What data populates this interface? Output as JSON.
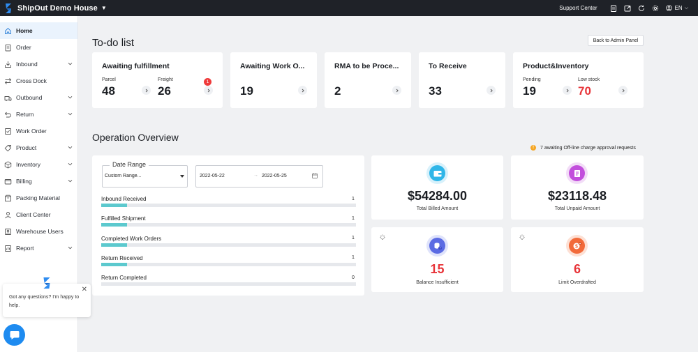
{
  "topbar": {
    "brand_name": "ShipOut Demo House",
    "support_label": "Support Center",
    "lang": "EN",
    "icons": [
      "clipboard-icon",
      "export-icon",
      "refresh-icon",
      "settings-icon",
      "user-icon"
    ]
  },
  "sidebar": {
    "items": [
      {
        "label": "Home",
        "icon": "home-icon",
        "active": true,
        "expandable": false
      },
      {
        "label": "Order",
        "icon": "order-icon",
        "active": false,
        "expandable": false
      },
      {
        "label": "Inbound",
        "icon": "inbound-icon",
        "active": false,
        "expandable": true
      },
      {
        "label": "Cross Dock",
        "icon": "cross-dock-icon",
        "active": false,
        "expandable": false
      },
      {
        "label": "Outbound",
        "icon": "outbound-icon",
        "active": false,
        "expandable": true
      },
      {
        "label": "Return",
        "icon": "return-icon",
        "active": false,
        "expandable": true
      },
      {
        "label": "Work Order",
        "icon": "work-order-icon",
        "active": false,
        "expandable": false
      },
      {
        "label": "Product",
        "icon": "product-icon",
        "active": false,
        "expandable": true
      },
      {
        "label": "Inventory",
        "icon": "inventory-icon",
        "active": false,
        "expandable": true
      },
      {
        "label": "Billing",
        "icon": "billing-icon",
        "active": false,
        "expandable": true
      },
      {
        "label": "Packing Material",
        "icon": "packing-icon",
        "active": false,
        "expandable": false
      },
      {
        "label": "Client Center",
        "icon": "client-icon",
        "active": false,
        "expandable": false
      },
      {
        "label": "Warehouse Users",
        "icon": "users-icon",
        "active": false,
        "expandable": false
      },
      {
        "label": "Report",
        "icon": "report-icon",
        "active": false,
        "expandable": true
      }
    ]
  },
  "chat": {
    "message": "Got any questions? I'm happy to help."
  },
  "todo": {
    "title": "To-do list",
    "admin_button": "Back to Admin Panel",
    "cards": {
      "fulfillment": {
        "title": "Awaiting fulfillment",
        "parcel_label": "Parcel",
        "parcel_value": "48",
        "freight_label": "Freight",
        "freight_value": "26",
        "freight_badge": "1"
      },
      "work_order": {
        "title": "Awaiting Work O...",
        "value": "19"
      },
      "rma": {
        "title": "RMA to be Proce...",
        "value": "2"
      },
      "receive": {
        "title": "To Receive",
        "value": "33"
      },
      "inventory": {
        "title": "Product&Inventory",
        "pending_label": "Pending",
        "pending_value": "19",
        "low_label": "Low stock",
        "low_value": "70"
      }
    }
  },
  "overview": {
    "title": "Operation Overview",
    "notice": "7 awaiting Off-line charge approval requests",
    "notice_icon": "!",
    "date_range_legend": "Date Range",
    "date_range_value": "Custom Range...",
    "range_start": "2022-05-22",
    "range_sep": "→",
    "range_end": "2022-05-25",
    "metrics": [
      {
        "label": "Inbound Received",
        "value": "1",
        "fill": 0.1
      },
      {
        "label": "Fulfilled Shipment",
        "value": "1",
        "fill": 0.1
      },
      {
        "label": "Completed Work Orders",
        "value": "1",
        "fill": 0.1
      },
      {
        "label": "Return Received",
        "value": "1",
        "fill": 0.1
      },
      {
        "label": "Return Completed",
        "value": "0",
        "fill": 0
      }
    ],
    "stats": {
      "billed": {
        "amount": "$54284.00",
        "label": "Total Billed Amount"
      },
      "unpaid": {
        "amount": "$23118.48",
        "label": "Total Unpaid Amount"
      },
      "balance": {
        "amount": "15",
        "label": "Balance Insufficient"
      },
      "limit": {
        "amount": "6",
        "label": "Limit Overdrafted"
      }
    }
  },
  "colors": {
    "accent": "#1e8bf0",
    "danger": "#e8353a",
    "progress": "#5cc9ce",
    "topbar": "#1f2228"
  }
}
